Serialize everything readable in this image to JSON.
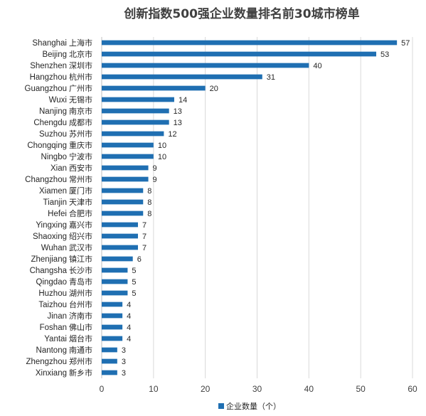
{
  "chart_data": {
    "type": "bar",
    "orientation": "horizontal",
    "title": "创新指数500强企业数量排名前30城市榜单",
    "categories": [
      {
        "en": "Shanghai",
        "zh": "上海市"
      },
      {
        "en": "Beijing",
        "zh": "北京市"
      },
      {
        "en": "Shenzhen",
        "zh": "深圳市"
      },
      {
        "en": "Hangzhou",
        "zh": "杭州市"
      },
      {
        "en": "Guangzhou",
        "zh": "广州市"
      },
      {
        "en": "Wuxi",
        "zh": "无锡市"
      },
      {
        "en": "Nanjing",
        "zh": "南京市"
      },
      {
        "en": "Chengdu",
        "zh": "成都市"
      },
      {
        "en": "Suzhou",
        "zh": "苏州市"
      },
      {
        "en": "Chongqing",
        "zh": "重庆市"
      },
      {
        "en": "Ningbo",
        "zh": "宁波市"
      },
      {
        "en": "Xian",
        "zh": "西安市"
      },
      {
        "en": "Changzhou",
        "zh": "常州市"
      },
      {
        "en": "Xiamen",
        "zh": "厦门市"
      },
      {
        "en": "Tianjin",
        "zh": "天津市"
      },
      {
        "en": "Hefei",
        "zh": "合肥市"
      },
      {
        "en": "Yingxing",
        "zh": "嘉兴市"
      },
      {
        "en": "Shaoxing",
        "zh": "绍兴市"
      },
      {
        "en": "Wuhan",
        "zh": "武汉市"
      },
      {
        "en": "Zhenjiang",
        "zh": "镇江市"
      },
      {
        "en": "Changsha",
        "zh": "长沙市"
      },
      {
        "en": "Qingdao",
        "zh": "青岛市"
      },
      {
        "en": "Huzhou",
        "zh": "湖州市"
      },
      {
        "en": "Taizhou",
        "zh": "台州市"
      },
      {
        "en": "Jinan",
        "zh": "济南市"
      },
      {
        "en": "Foshan",
        "zh": "佛山市"
      },
      {
        "en": "Yantai",
        "zh": "烟台市"
      },
      {
        "en": "Nantong",
        "zh": "南通市"
      },
      {
        "en": "Zhengzhou",
        "zh": "郑州市"
      },
      {
        "en": "Xinxiang",
        "zh": "新乡市"
      }
    ],
    "series": [
      {
        "name": "企业数量（个）",
        "color": "#1f6fb2",
        "values": [
          57,
          53,
          40,
          31,
          20,
          14,
          13,
          13,
          12,
          10,
          10,
          9,
          9,
          8,
          8,
          8,
          7,
          7,
          7,
          6,
          5,
          5,
          5,
          4,
          4,
          4,
          4,
          3,
          3,
          3
        ]
      }
    ],
    "xlim": [
      0,
      60
    ],
    "xticks": [
      0,
      10,
      20,
      30,
      40,
      50,
      60
    ],
    "grid": true,
    "legend_position": "bottom"
  }
}
